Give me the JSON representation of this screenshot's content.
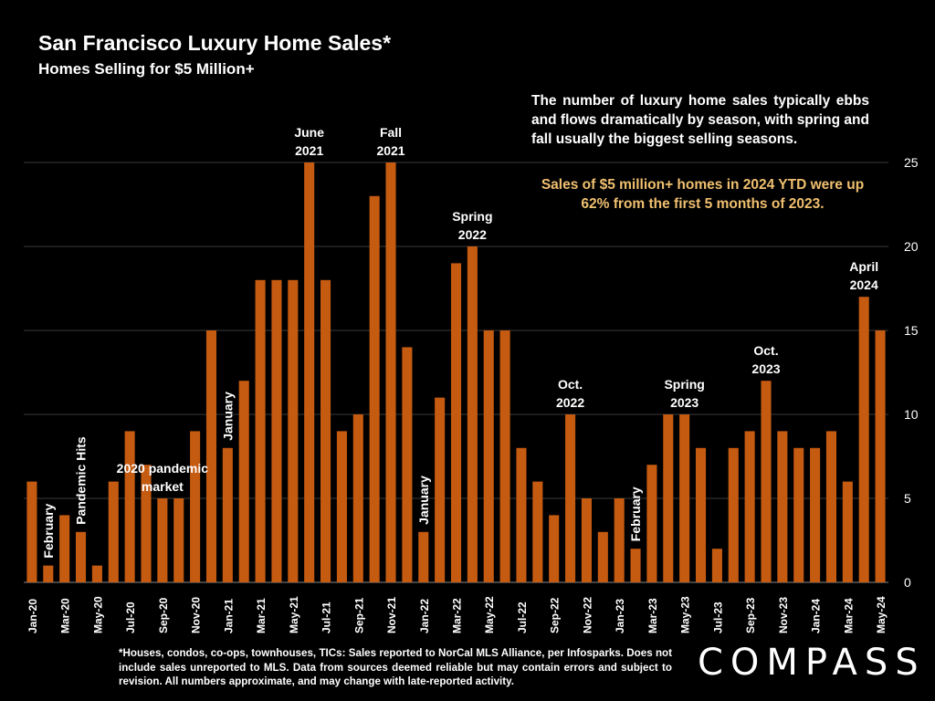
{
  "header": {
    "title": "San Francisco Luxury Home Sales*",
    "subtitle": "Homes Selling for $5 Million+"
  },
  "commentary": {
    "note": "The number of luxury home sales typically ebbs and flows dramatically by season, with spring and fall usually the biggest selling seasons.",
    "highlight": "Sales of $5 million+ homes in 2024 YTD were up 62% from the first 5 months of 2023."
  },
  "footer": {
    "footnote": "*Houses, condos, co-ops, townhouses, TICs:  Sales reported to NorCal MLS Alliance, per Infosparks. Does not include sales unreported to MLS. Data from sources deemed reliable but may contain errors and subject to revision.  All numbers approximate, and may change with late-reported activity.",
    "logo": "COMPASS"
  },
  "chart_data": {
    "type": "bar",
    "bar_color": "#c55a11",
    "grid": true,
    "y_axis_side": "right",
    "ylim": [
      0,
      25
    ],
    "yticks": [
      0,
      5,
      10,
      15,
      20,
      25
    ],
    "categories": [
      "Jan-20",
      "Feb-20",
      "Mar-20",
      "Apr-20",
      "May-20",
      "Jun-20",
      "Jul-20",
      "Aug-20",
      "Sep-20",
      "Oct-20",
      "Nov-20",
      "Dec-20",
      "Jan-21",
      "Feb-21",
      "Mar-21",
      "Apr-21",
      "May-21",
      "Jun-21",
      "Jul-21",
      "Aug-21",
      "Sep-21",
      "Oct-21",
      "Nov-21",
      "Dec-21",
      "Jan-22",
      "Feb-22",
      "Mar-22",
      "Apr-22",
      "May-22",
      "Jun-22",
      "Jul-22",
      "Aug-22",
      "Sep-22",
      "Oct-22",
      "Nov-22",
      "Dec-22",
      "Jan-23",
      "Feb-23",
      "Mar-23",
      "Apr-23",
      "May-23",
      "Jun-23",
      "Jul-23",
      "Aug-23",
      "Sep-23",
      "Oct-23",
      "Nov-23",
      "Dec-23",
      "Jan-24",
      "Feb-24",
      "Mar-24",
      "Apr-24",
      "May-24"
    ],
    "xtick_labels": [
      "Jan-20",
      "",
      "Mar-20",
      "",
      "May-20",
      "",
      "Jul-20",
      "",
      "Sep-20",
      "",
      "Nov-20",
      "",
      "Jan-21",
      "",
      "Mar-21",
      "",
      "May-21",
      "",
      "Jul-21",
      "",
      "Sep-21",
      "",
      "Nov-21",
      "",
      "Jan-22",
      "",
      "Mar-22",
      "",
      "May-22",
      "",
      "Jul-22",
      "",
      "Sep-22",
      "",
      "Nov-22",
      "",
      "Jan-23",
      "",
      "Mar-23",
      "",
      "May-23",
      "",
      "Jul-23",
      "",
      "Sep-23",
      "",
      "Nov-23",
      "",
      "Jan-24",
      "",
      "Mar-24",
      "",
      "May-24"
    ],
    "values": [
      6,
      1,
      4,
      3,
      1,
      6,
      9,
      7,
      5,
      5,
      9,
      15,
      8,
      12,
      18,
      18,
      18,
      25,
      18,
      9,
      10,
      23,
      25,
      14,
      3,
      11,
      19,
      20,
      15,
      15,
      8,
      6,
      4,
      10,
      5,
      3,
      5,
      2,
      7,
      10,
      10,
      8,
      2,
      8,
      9,
      12,
      9,
      8,
      8,
      9,
      6,
      17,
      15
    ],
    "annotations": [
      {
        "index": 1,
        "text": "February",
        "orientation": "vertical"
      },
      {
        "index": 3,
        "text": "Pandemic Hits",
        "orientation": "vertical"
      },
      {
        "index": 12,
        "text": "January",
        "orientation": "vertical"
      },
      {
        "index": 24,
        "text": "January",
        "orientation": "vertical"
      },
      {
        "index": 37,
        "text": "February",
        "orientation": "vertical"
      },
      {
        "index": 8,
        "text": "2020 pandemic|market",
        "orientation": "horizontal"
      },
      {
        "index": 17,
        "text": "June|2021",
        "orientation": "horizontal"
      },
      {
        "index": 22,
        "text": "Fall|2021",
        "orientation": "horizontal"
      },
      {
        "index": 27,
        "text": "Spring|2022",
        "orientation": "horizontal"
      },
      {
        "index": 33,
        "text": "Oct.|2022",
        "orientation": "horizontal"
      },
      {
        "index": 40,
        "text": "Spring|2023",
        "orientation": "horizontal"
      },
      {
        "index": 45,
        "text": "Oct.|2023",
        "orientation": "horizontal"
      },
      {
        "index": 51,
        "text": "April|2024",
        "orientation": "horizontal"
      }
    ]
  }
}
